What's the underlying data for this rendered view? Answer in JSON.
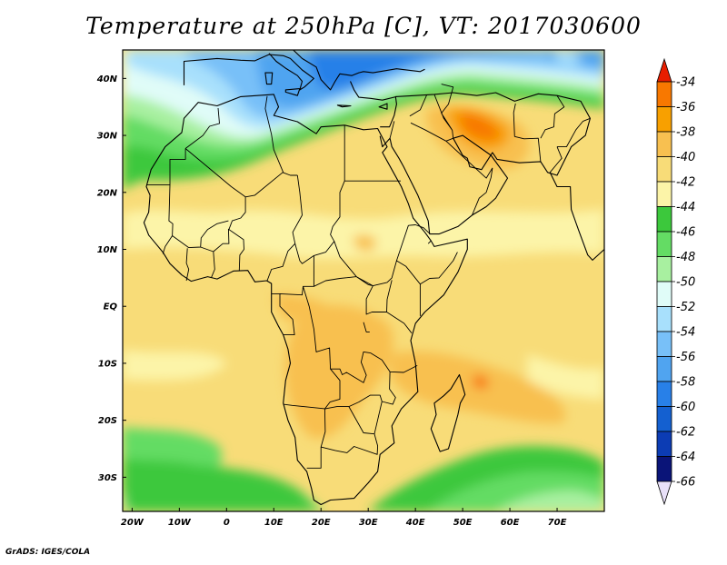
{
  "title": "Temperature at 250hPa [C], VT: 2017030600",
  "credit": "GrADS: IGES/COLA",
  "map": {
    "lon_range": [
      -22,
      80
    ],
    "lat_range": [
      -36,
      45
    ],
    "lon_ticks": [
      {
        "value": -20,
        "label": "20W"
      },
      {
        "value": -10,
        "label": "10W"
      },
      {
        "value": 0,
        "label": "0"
      },
      {
        "value": 10,
        "label": "10E"
      },
      {
        "value": 20,
        "label": "20E"
      },
      {
        "value": 30,
        "label": "30E"
      },
      {
        "value": 40,
        "label": "40E"
      },
      {
        "value": 50,
        "label": "50E"
      },
      {
        "value": 60,
        "label": "60E"
      },
      {
        "value": 70,
        "label": "70E"
      }
    ],
    "lat_ticks": [
      {
        "value": 40,
        "label": "40N"
      },
      {
        "value": 30,
        "label": "30N"
      },
      {
        "value": 20,
        "label": "20N"
      },
      {
        "value": 10,
        "label": "10N"
      },
      {
        "value": 0,
        "label": "EQ"
      },
      {
        "value": -10,
        "label": "10S"
      },
      {
        "value": -20,
        "label": "20S"
      },
      {
        "value": -30,
        "label": "30S"
      }
    ]
  },
  "colorbar": {
    "levels": [
      "-34",
      "-36",
      "-38",
      "-40",
      "-42",
      "-44",
      "-46",
      "-48",
      "-50",
      "-52",
      "-54",
      "-56",
      "-58",
      "-60",
      "-62",
      "-64",
      "-66"
    ],
    "colors": [
      "#f03c00",
      "#f87800",
      "#f8a000",
      "#f8c050",
      "#f8dc78",
      "#fcf4a8",
      "#3cc83c",
      "#64dc64",
      "#a8f0a0",
      "#e0fcf8",
      "#a8e0fc",
      "#78c0f8",
      "#50a4f0",
      "#2880e8",
      "#1460d0",
      "#0c3cb4",
      "#0a1478"
    ],
    "top_color": "#e81e00",
    "bottom_color": "#e8e0f8"
  }
}
